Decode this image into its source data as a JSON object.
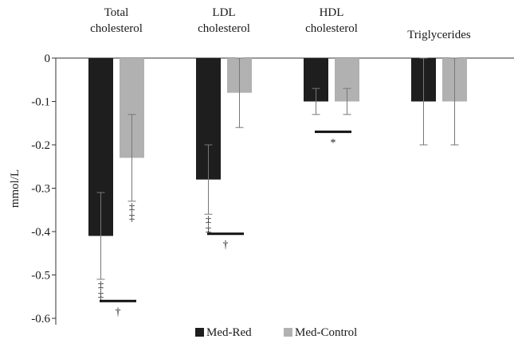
{
  "chart_data": {
    "type": "bar",
    "categories": [
      "Total\ncholesterol",
      "LDL\ncholesterol",
      "HDL\ncholesterol",
      "Triglycerides"
    ],
    "ylabel": "mmol/L",
    "ylim": [
      -0.6,
      0
    ],
    "yticks": [
      0,
      -0.1,
      -0.2,
      -0.3,
      -0.4,
      -0.5,
      -0.6
    ],
    "ytick_labels": [
      "0",
      "-0.1",
      "-0.2",
      "-0.3",
      "-0.4",
      "-0.5",
      "-0.6"
    ],
    "legend_position": "bottom",
    "series": [
      {
        "name": "Med-Red",
        "color": "#1e1e1e",
        "values": [
          -0.41,
          -0.28,
          -0.1,
          -0.1
        ],
        "error": [
          0.1,
          0.08,
          0.03,
          0.1
        ],
        "symbols": [
          "‡",
          "‡",
          "",
          ""
        ]
      },
      {
        "name": "Med-Control",
        "color": "#b1b1b1",
        "values": [
          -0.23,
          -0.08,
          -0.1,
          -0.1
        ],
        "error": [
          0.1,
          0.08,
          0.03,
          0.1
        ],
        "symbols": [
          "‡",
          "",
          "",
          ""
        ]
      }
    ],
    "group_comparisons": [
      {
        "category_index": 0,
        "symbol": "†",
        "y": -0.56
      },
      {
        "category_index": 1,
        "symbol": "†",
        "y": -0.405
      },
      {
        "category_index": 2,
        "symbol": "*",
        "y": -0.17
      }
    ]
  }
}
